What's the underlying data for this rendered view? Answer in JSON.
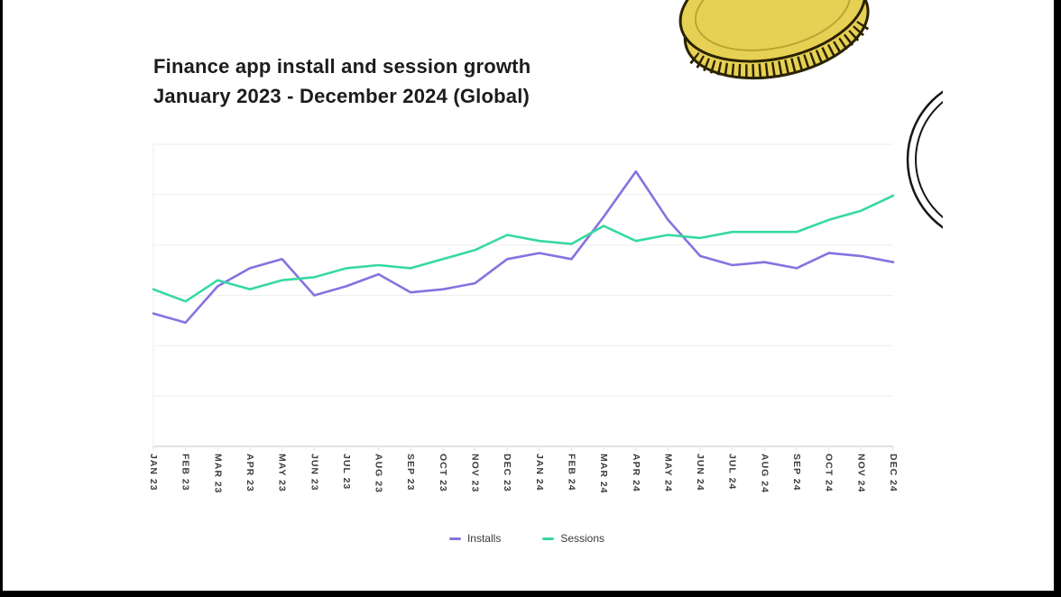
{
  "header": {
    "title_line1": "Finance app install and session growth",
    "title_line2": "January 2023 - December 2024 (Global)"
  },
  "colors": {
    "installs_line": "#8672e0",
    "sessions_line": "#36d9a1",
    "title_text": "#1c1c1e",
    "axis_label": "#3b3b3b",
    "gridline": "#eeeeee",
    "axis_line": "#d9d9d9",
    "coin_fill": "#e7d154",
    "coin_outline": "#2a2301",
    "coin_inner": "#bda431",
    "ring_outline": "#161616",
    "letterbox": "#000000"
  },
  "chart_data": {
    "type": "line",
    "title": "Finance app install and session growth January 2023 - December 2024 (Global)",
    "xlabel": "",
    "ylabel": "",
    "ylim": [
      0,
      100
    ],
    "grid": "horizontal",
    "y_axis_labels_visible": false,
    "legend_position": "bottom",
    "categories": [
      "JAN 23",
      "FEB 23",
      "MAR 23",
      "APR 23",
      "MAY 23",
      "JUN 23",
      "JUL 23",
      "AUG 23",
      "SEP 23",
      "OCT 23",
      "NOV 23",
      "DEC 23",
      "JAN 24",
      "FEB 24",
      "MAR 24",
      "APR 24",
      "MAY 24",
      "JUN 24",
      "JUL 24",
      "AUG 24",
      "SEP 24",
      "OCT 24",
      "NOV 24",
      "DEC 24"
    ],
    "series": [
      {
        "name": "Installs",
        "color": "#8672e0",
        "values": [
          44,
          41,
          53,
          59,
          62,
          50,
          53,
          57,
          51,
          52,
          54,
          62,
          64,
          62,
          76,
          91,
          75,
          63,
          60,
          61,
          59,
          64,
          63,
          61
        ]
      },
      {
        "name": "Sessions",
        "color": "#36d9a1",
        "values": [
          52,
          48,
          55,
          52,
          55,
          56,
          59,
          60,
          59,
          62,
          65,
          70,
          68,
          67,
          73,
          68,
          70,
          69,
          71,
          71,
          71,
          75,
          78,
          83
        ]
      }
    ]
  }
}
